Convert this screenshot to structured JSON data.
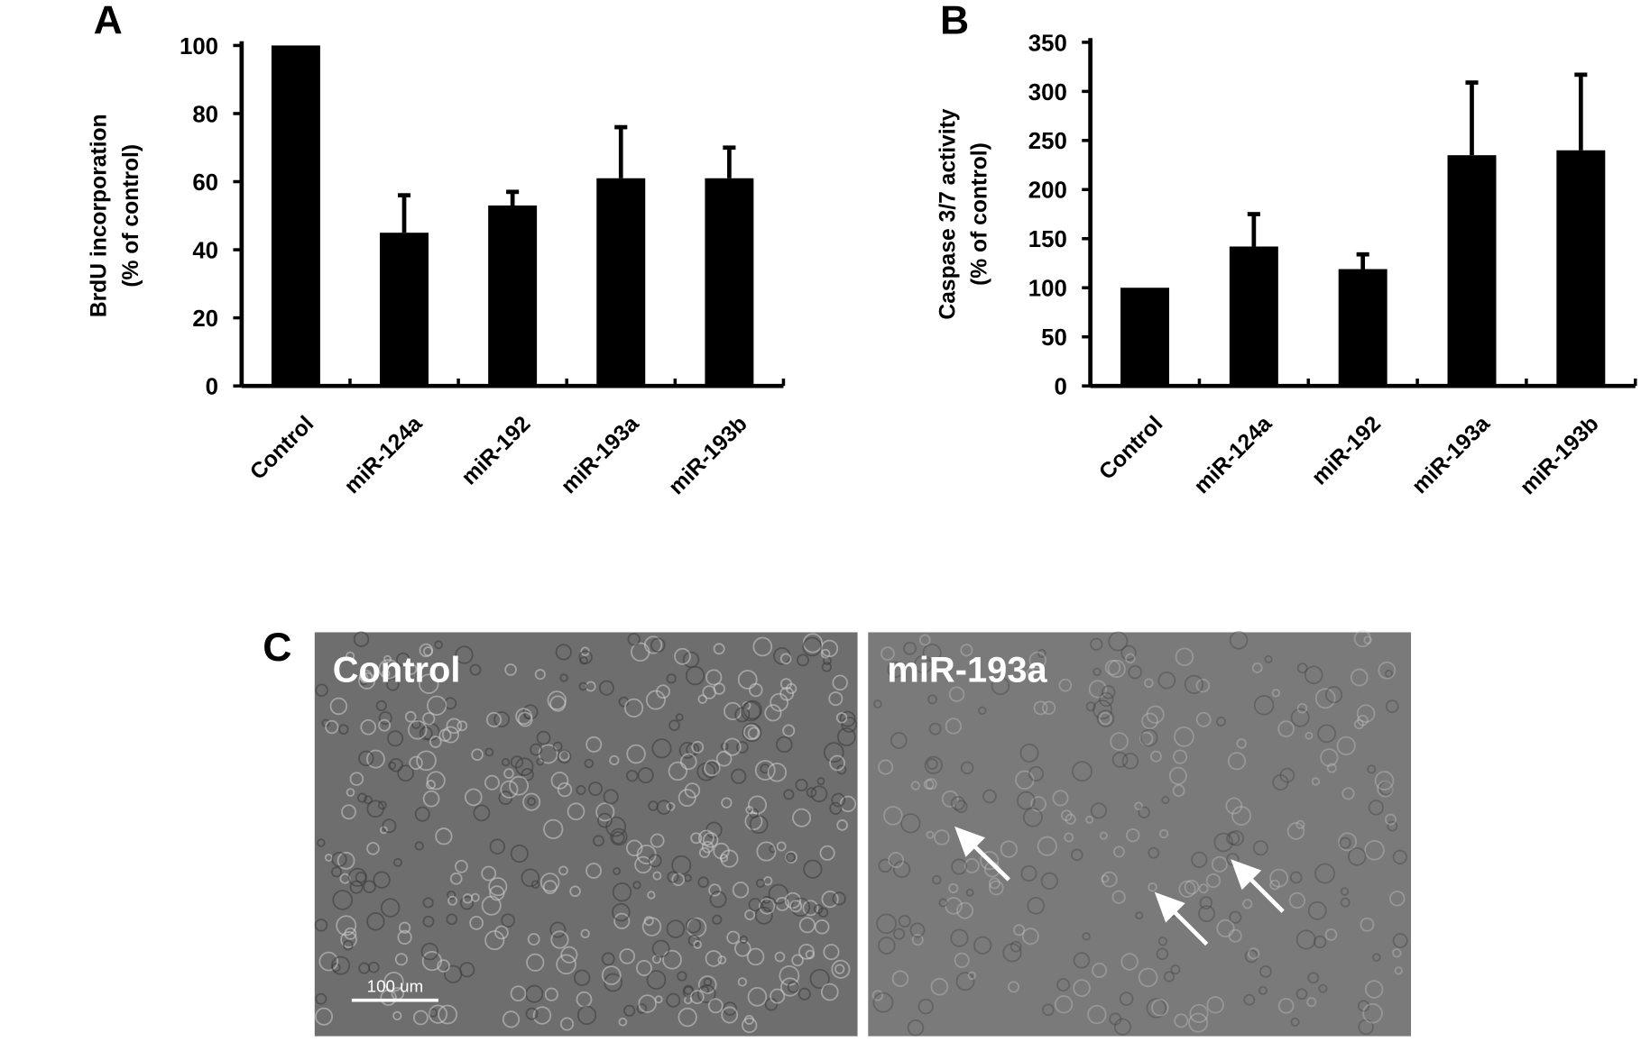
{
  "chart_data": [
    {
      "type": "bar",
      "panel_label": "A",
      "ylabel": [
        "BrdU incorporation",
        "(% of control)"
      ],
      "categories": [
        "Control",
        "miR-124a",
        "miR-192",
        "miR-193a",
        "miR-193b"
      ],
      "series": [
        {
          "color": "#000000",
          "values": [
            100,
            45,
            53,
            61,
            61
          ],
          "errors": [
            0,
            11,
            4,
            15,
            9
          ]
        }
      ],
      "ylim": [
        0,
        100
      ],
      "yticks": [
        0,
        20,
        40,
        60,
        80,
        100
      ]
    },
    {
      "type": "bar",
      "panel_label": "B",
      "ylabel": [
        "Caspase 3/7 activity",
        "(% of control)"
      ],
      "categories": [
        "Control",
        "miR-124a",
        "miR-192",
        "miR-193a",
        "miR-193b"
      ],
      "series": [
        {
          "color": "#000000",
          "values": [
            100,
            142,
            119,
            235,
            240
          ],
          "errors": [
            0,
            33,
            15,
            74,
            77
          ]
        }
      ],
      "ylim": [
        0,
        350
      ],
      "yticks": [
        0,
        50,
        100,
        150,
        200,
        250,
        300,
        350
      ]
    }
  ],
  "panel_c": {
    "label": "C",
    "images": [
      {
        "label": "Control",
        "scale_bar": "100 um"
      },
      {
        "label": "miR-193a"
      }
    ]
  }
}
